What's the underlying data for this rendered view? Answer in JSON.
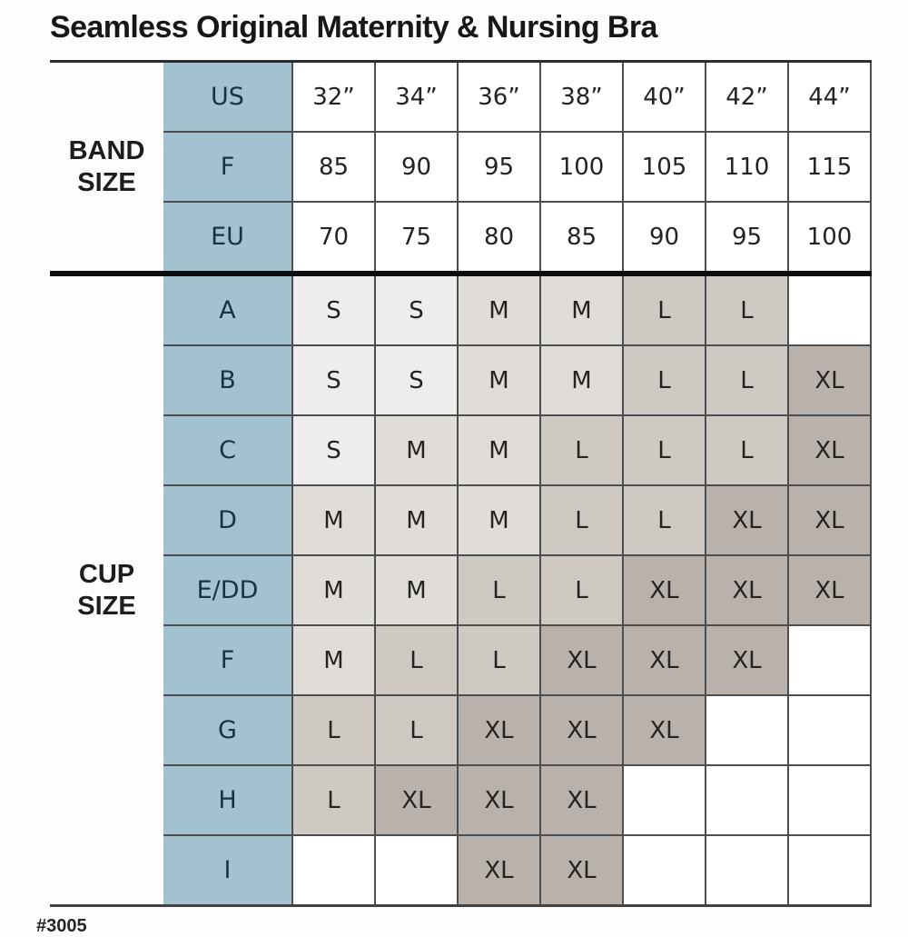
{
  "title": "Seamless Original Maternity & Nursing Bra",
  "footer": {
    "sku": "#3005"
  },
  "table": {
    "band": {
      "label": "BAND SIZE",
      "rows": [
        {
          "label": "US",
          "values": [
            "32”",
            "34”",
            "36”",
            "38”",
            "40”",
            "42”",
            "44”"
          ]
        },
        {
          "label": "F",
          "values": [
            "85",
            "90",
            "95",
            "100",
            "105",
            "110",
            "115"
          ]
        },
        {
          "label": "EU",
          "values": [
            "70",
            "75",
            "80",
            "85",
            "90",
            "95",
            "100"
          ]
        }
      ]
    },
    "cup": {
      "label": "CUP SIZE",
      "rows": [
        {
          "label": "A",
          "values": [
            "S",
            "S",
            "M",
            "M",
            "L",
            "L",
            ""
          ]
        },
        {
          "label": "B",
          "values": [
            "S",
            "S",
            "M",
            "M",
            "L",
            "L",
            "XL"
          ]
        },
        {
          "label": "C",
          "values": [
            "S",
            "M",
            "M",
            "L",
            "L",
            "L",
            "XL"
          ]
        },
        {
          "label": "D",
          "values": [
            "M",
            "M",
            "M",
            "L",
            "L",
            "XL",
            "XL"
          ]
        },
        {
          "label": "E/DD",
          "values": [
            "M",
            "M",
            "L",
            "L",
            "XL",
            "XL",
            "XL"
          ]
        },
        {
          "label": "F",
          "values": [
            "M",
            "L",
            "L",
            "XL",
            "XL",
            "XL",
            ""
          ]
        },
        {
          "label": "G",
          "values": [
            "L",
            "L",
            "XL",
            "XL",
            "XL",
            "",
            ""
          ]
        },
        {
          "label": "H",
          "values": [
            "L",
            "XL",
            "XL",
            "XL",
            "",
            "",
            ""
          ]
        },
        {
          "label": "I",
          "values": [
            "",
            "",
            "XL",
            "XL",
            "",
            "",
            ""
          ]
        }
      ]
    }
  },
  "colors": {
    "header_column": "#a2c2cf",
    "size_s": "#efedeb",
    "size_m": "#e0ddd9",
    "size_l": "#cfc9c4",
    "size_xl": "#b9b2ac",
    "grid_line": "#4c4d4f",
    "blue_text": "#173340",
    "cell_text": "#242322"
  },
  "chart_data": {
    "type": "table",
    "title": "Seamless Original Maternity & Nursing Bra",
    "band_size_columns": {
      "US": [
        "32”",
        "34”",
        "36”",
        "38”",
        "40”",
        "42”",
        "44”"
      ],
      "F": [
        "85",
        "90",
        "95",
        "100",
        "105",
        "110",
        "115"
      ],
      "EU": [
        "70",
        "75",
        "80",
        "85",
        "90",
        "95",
        "100"
      ]
    },
    "cup_size_rows": [
      "A",
      "B",
      "C",
      "D",
      "E/DD",
      "F",
      "G",
      "H",
      "I"
    ],
    "recommended_size_matrix": [
      [
        "S",
        "S",
        "M",
        "M",
        "L",
        "L",
        null
      ],
      [
        "S",
        "S",
        "M",
        "M",
        "L",
        "L",
        "XL"
      ],
      [
        "S",
        "M",
        "M",
        "L",
        "L",
        "L",
        "XL"
      ],
      [
        "M",
        "M",
        "M",
        "L",
        "L",
        "XL",
        "XL"
      ],
      [
        "M",
        "M",
        "L",
        "L",
        "XL",
        "XL",
        "XL"
      ],
      [
        "M",
        "L",
        "L",
        "XL",
        "XL",
        "XL",
        null
      ],
      [
        "L",
        "L",
        "XL",
        "XL",
        "XL",
        null,
        null
      ],
      [
        "L",
        "XL",
        "XL",
        "XL",
        null,
        null,
        null
      ],
      [
        null,
        null,
        "XL",
        "XL",
        null,
        null,
        null
      ]
    ],
    "size_legend_shading": {
      "S": "#efedeb",
      "M": "#e0ddd9",
      "L": "#cfc9c4",
      "XL": "#b9b2ac"
    },
    "product_number": "#3005"
  }
}
